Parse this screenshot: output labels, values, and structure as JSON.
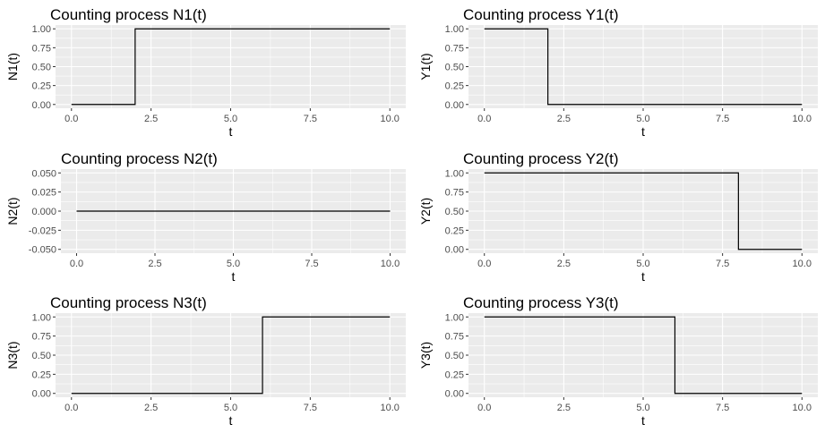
{
  "chart_data": [
    {
      "type": "line",
      "step": true,
      "title": "Counting process N1(t)",
      "xlabel": "t",
      "ylabel": "N1(t)",
      "xlim": [
        -0.5,
        10.5
      ],
      "ylim": [
        -0.05,
        1.05
      ],
      "x_ticks": [
        0,
        2.5,
        5,
        7.5,
        10
      ],
      "x_tick_labels": [
        "0.0",
        "2.5",
        "5.0",
        "7.5",
        "10.0"
      ],
      "y_ticks": [
        0,
        0.25,
        0.5,
        0.75,
        1
      ],
      "y_tick_labels": [
        "0.00",
        "0.25",
        "0.50",
        "0.75",
        "1.00"
      ],
      "x": [
        0,
        2,
        2,
        10
      ],
      "y": [
        0,
        0,
        1,
        1
      ]
    },
    {
      "type": "line",
      "step": true,
      "title": "Counting process Y1(t)",
      "xlabel": "t",
      "ylabel": "Y1(t)",
      "xlim": [
        -0.5,
        10.5
      ],
      "ylim": [
        -0.05,
        1.05
      ],
      "x_ticks": [
        0,
        2.5,
        5,
        7.5,
        10
      ],
      "x_tick_labels": [
        "0.0",
        "2.5",
        "5.0",
        "7.5",
        "10.0"
      ],
      "y_ticks": [
        0,
        0.25,
        0.5,
        0.75,
        1
      ],
      "y_tick_labels": [
        "0.00",
        "0.25",
        "0.50",
        "0.75",
        "1.00"
      ],
      "x": [
        0,
        2,
        2,
        10
      ],
      "y": [
        1,
        1,
        0,
        0
      ]
    },
    {
      "type": "line",
      "step": true,
      "title": "Counting process N2(t)",
      "xlabel": "t",
      "ylabel": "N2(t)",
      "xlim": [
        -0.5,
        10.5
      ],
      "ylim": [
        -0.055,
        0.055
      ],
      "x_ticks": [
        0,
        2.5,
        5,
        7.5,
        10
      ],
      "x_tick_labels": [
        "0.0",
        "2.5",
        "5.0",
        "7.5",
        "10.0"
      ],
      "y_ticks": [
        -0.05,
        -0.025,
        0,
        0.025,
        0.05
      ],
      "y_tick_labels": [
        "-0.050",
        "-0.025",
        "0.000",
        "0.025",
        "0.050"
      ],
      "x": [
        0,
        10
      ],
      "y": [
        0,
        0
      ]
    },
    {
      "type": "line",
      "step": true,
      "title": "Counting process Y2(t)",
      "xlabel": "t",
      "ylabel": "Y2(t)",
      "xlim": [
        -0.5,
        10.5
      ],
      "ylim": [
        -0.05,
        1.05
      ],
      "x_ticks": [
        0,
        2.5,
        5,
        7.5,
        10
      ],
      "x_tick_labels": [
        "0.0",
        "2.5",
        "5.0",
        "7.5",
        "10.0"
      ],
      "y_ticks": [
        0,
        0.25,
        0.5,
        0.75,
        1
      ],
      "y_tick_labels": [
        "0.00",
        "0.25",
        "0.50",
        "0.75",
        "1.00"
      ],
      "x": [
        0,
        8,
        8,
        10
      ],
      "y": [
        1,
        1,
        0,
        0
      ]
    },
    {
      "type": "line",
      "step": true,
      "title": "Counting process N3(t)",
      "xlabel": "t",
      "ylabel": "N3(t)",
      "xlim": [
        -0.5,
        10.5
      ],
      "ylim": [
        -0.05,
        1.05
      ],
      "x_ticks": [
        0,
        2.5,
        5,
        7.5,
        10
      ],
      "x_tick_labels": [
        "0.0",
        "2.5",
        "5.0",
        "7.5",
        "10.0"
      ],
      "y_ticks": [
        0,
        0.25,
        0.5,
        0.75,
        1
      ],
      "y_tick_labels": [
        "0.00",
        "0.25",
        "0.50",
        "0.75",
        "1.00"
      ],
      "x": [
        0,
        6,
        6,
        10
      ],
      "y": [
        0,
        0,
        1,
        1
      ]
    },
    {
      "type": "line",
      "step": true,
      "title": "Counting process Y3(t)",
      "xlabel": "t",
      "ylabel": "Y3(t)",
      "xlim": [
        -0.5,
        10.5
      ],
      "ylim": [
        -0.05,
        1.05
      ],
      "x_ticks": [
        0,
        2.5,
        5,
        7.5,
        10
      ],
      "x_tick_labels": [
        "0.0",
        "2.5",
        "5.0",
        "7.5",
        "10.0"
      ],
      "y_ticks": [
        0,
        0.25,
        0.5,
        0.75,
        1
      ],
      "y_tick_labels": [
        "0.00",
        "0.25",
        "0.50",
        "0.75",
        "1.00"
      ],
      "x": [
        0,
        6,
        6,
        10
      ],
      "y": [
        1,
        1,
        0,
        0
      ]
    }
  ],
  "colors": {
    "panel_background": "#ebebeb",
    "major_grid": "#ffffff",
    "line": "#000000",
    "tick_text": "#4d4d4d"
  },
  "grid": true
}
